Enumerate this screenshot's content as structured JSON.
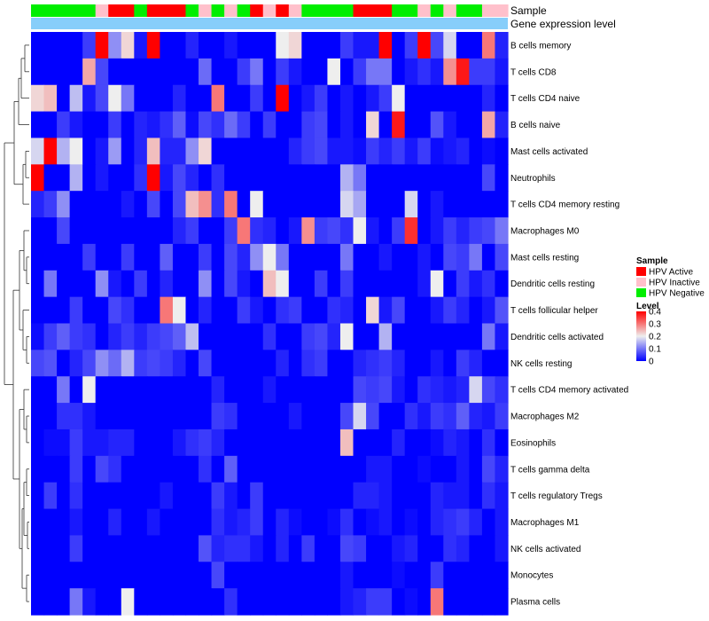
{
  "chart_data": {
    "type": "heatmap",
    "colors": {
      "low": "#0000ff",
      "mid": "#eeeeee",
      "high": "#ff0000",
      "hpv_active": "#ff0000",
      "hpv_inactive": "#ffc0cb",
      "hpv_negative": "#00ee00",
      "gene_expression_bar": "#87cefa"
    },
    "annotation_labels": {
      "sample": "Sample",
      "gene_expression": "Gene expression level"
    },
    "sample_annotation": [
      "HPV Negative",
      "HPV Negative",
      "HPV Negative",
      "HPV Negative",
      "HPV Negative",
      "HPV Inactive",
      "HPV Active",
      "HPV Active",
      "HPV Negative",
      "HPV Active",
      "HPV Active",
      "HPV Active",
      "HPV Negative",
      "HPV Inactive",
      "HPV Negative",
      "HPV Inactive",
      "HPV Negative",
      "HPV Active",
      "HPV Inactive",
      "HPV Active",
      "HPV Inactive",
      "HPV Negative",
      "HPV Negative",
      "HPV Negative",
      "HPV Negative",
      "HPV Active",
      "HPV Active",
      "HPV Active",
      "HPV Negative",
      "HPV Negative",
      "HPV Inactive",
      "HPV Negative",
      "HPV Inactive",
      "HPV Negative",
      "HPV Negative",
      "HPV Inactive",
      "HPV Inactive"
    ],
    "rows": [
      "B cells memory",
      "T cells CD8",
      "T cells CD4 naive",
      "B cells naive",
      "Mast cells activated",
      "Neutrophils",
      "T cells CD4 memory resting",
      "Macrophages M0",
      "Mast cells resting",
      "Dendritic cells resting",
      "T cells follicular helper",
      "Dendritic cells activated",
      "NK cells resting",
      "T cells CD4 memory activated",
      "Macrophages M2",
      "Eosinophils",
      "T cells gamma delta",
      "T cells regulatory  Tregs",
      "Macrophages M1",
      "NK cells activated",
      "Monocytes",
      "Plasma cells"
    ],
    "values": [
      [
        0,
        0,
        0,
        0,
        0.05,
        0.4,
        0.12,
        0.22,
        0.02,
        0.4,
        0,
        0,
        0.03,
        0,
        0,
        0.02,
        0,
        0,
        0,
        0.2,
        0.22,
        0,
        0,
        0,
        0.05,
        0.02,
        0.02,
        0.4,
        0,
        0.05,
        0.4,
        0.06,
        0.18,
        0,
        0,
        0.3,
        0.03
      ],
      [
        0,
        0,
        0,
        0,
        0.26,
        0.06,
        0,
        0,
        0,
        0,
        0,
        0,
        0,
        0.09,
        0,
        0,
        0.05,
        0.1,
        0,
        0.05,
        0.02,
        0,
        0,
        0.2,
        0,
        0.05,
        0.1,
        0.1,
        0,
        0.02,
        0.04,
        0.02,
        0.28,
        0.38,
        0.05,
        0.05,
        0.02
      ],
      [
        0.22,
        0.24,
        0,
        0.16,
        0.02,
        0.06,
        0.2,
        0.1,
        0,
        0,
        0,
        0.03,
        0,
        0,
        0.3,
        0,
        0,
        0.05,
        0,
        0.4,
        0,
        0.02,
        0.05,
        0,
        0.02,
        0,
        0.02,
        0.05,
        0.2,
        0,
        0,
        0,
        0,
        0,
        0,
        0.03,
        0
      ],
      [
        0,
        0,
        0.05,
        0.02,
        0,
        0,
        0.05,
        0,
        0.03,
        0.02,
        0.04,
        0.08,
        0.01,
        0.06,
        0.04,
        0.09,
        0.05,
        0,
        0.05,
        0,
        0,
        0.05,
        0.06,
        0,
        0.02,
        0,
        0.22,
        0,
        0.38,
        0,
        0,
        0.07,
        0.02,
        0,
        0,
        0.26,
        0.03
      ],
      [
        0.18,
        0.4,
        0.15,
        0.2,
        0,
        0.02,
        0.13,
        0,
        0.03,
        0.24,
        0.03,
        0.03,
        0.12,
        0.22,
        0,
        0,
        0,
        0,
        0,
        0,
        0.03,
        0.05,
        0.06,
        0.02,
        0.02,
        0.01,
        0.05,
        0.03,
        0.05,
        0.02,
        0.05,
        0.01,
        0.02,
        0.03,
        0,
        0.01,
        0
      ],
      [
        0.4,
        0,
        0,
        0.15,
        0,
        0.02,
        0,
        0,
        0.04,
        0.4,
        0.02,
        0.06,
        0.03,
        0,
        0.04,
        0,
        0,
        0,
        0,
        0,
        0,
        0,
        0,
        0,
        0.15,
        0.1,
        0,
        0,
        0,
        0,
        0,
        0,
        0,
        0,
        0,
        0.06,
        0
      ],
      [
        0.03,
        0.05,
        0.12,
        0,
        0,
        0,
        0,
        0.02,
        0,
        0.06,
        0,
        0.06,
        0.24,
        0.28,
        0.04,
        0.3,
        0,
        0.2,
        0,
        0,
        0,
        0,
        0,
        0,
        0.18,
        0.14,
        0,
        0,
        0,
        0.18,
        0,
        0.02,
        0,
        0,
        0,
        0,
        0
      ],
      [
        0,
        0,
        0.06,
        0,
        0,
        0,
        0,
        0,
        0,
        0,
        0,
        0.03,
        0.05,
        0,
        0,
        0.05,
        0.3,
        0.04,
        0.03,
        0,
        0.02,
        0.28,
        0.05,
        0.06,
        0.04,
        0.2,
        0.02,
        0,
        0.05,
        0.36,
        0,
        0.02,
        0.05,
        0.03,
        0.05,
        0.06,
        0.1
      ],
      [
        0,
        0,
        0,
        0,
        0.05,
        0,
        0,
        0.05,
        0,
        0,
        0.08,
        0,
        0,
        0.05,
        0,
        0.06,
        0.03,
        0.12,
        0.2,
        0.1,
        0,
        0,
        0,
        0,
        0.1,
        0,
        0,
        0.02,
        0,
        0,
        0.02,
        0,
        0.06,
        0.05,
        0.1,
        0,
        0.06
      ],
      [
        0,
        0.1,
        0,
        0,
        0,
        0.12,
        0.02,
        0,
        0.05,
        0,
        0.03,
        0,
        0,
        0.12,
        0,
        0.06,
        0.02,
        0,
        0.24,
        0.2,
        0,
        0,
        0.05,
        0,
        0.05,
        0,
        0,
        0,
        0,
        0,
        0.02,
        0.2,
        0,
        0.05,
        0.02,
        0.04,
        0
      ],
      [
        0,
        0,
        0,
        0.05,
        0,
        0,
        0.06,
        0.04,
        0,
        0,
        0.3,
        0.2,
        0,
        0.03,
        0,
        0,
        0.05,
        0.02,
        0,
        0.04,
        0.05,
        0,
        0,
        0.04,
        0.03,
        0,
        0.22,
        0.02,
        0.06,
        0,
        0,
        0.02,
        0.05,
        0.03,
        0,
        0.02,
        0.07
      ],
      [
        0.01,
        0.05,
        0.08,
        0.05,
        0.04,
        0,
        0.03,
        0.05,
        0.03,
        0.05,
        0.06,
        0.08,
        0.16,
        0,
        0,
        0,
        0,
        0,
        0.04,
        0,
        0,
        0.05,
        0.06,
        0.03,
        0.2,
        0,
        0,
        0.15,
        0,
        0,
        0,
        0,
        0,
        0,
        0,
        0.1,
        0.02
      ],
      [
        0.06,
        0.07,
        0,
        0.03,
        0.06,
        0.12,
        0.09,
        0.15,
        0.05,
        0.06,
        0.05,
        0.03,
        0,
        0.06,
        0,
        0,
        0,
        0,
        0,
        0.03,
        0,
        0.04,
        0.05,
        0,
        0,
        0.03,
        0.04,
        0.05,
        0.03,
        0,
        0,
        0.02,
        0,
        0.05,
        0.03,
        0,
        0
      ],
      [
        0,
        0,
        0.1,
        0,
        0.2,
        0,
        0,
        0,
        0,
        0,
        0,
        0,
        0,
        0,
        0.03,
        0,
        0,
        0,
        0.02,
        0,
        0,
        0,
        0,
        0,
        0,
        0.06,
        0.05,
        0.06,
        0.02,
        0,
        0.04,
        0.03,
        0.02,
        0.03,
        0.18,
        0.06,
        0.04
      ],
      [
        0,
        0,
        0.04,
        0.04,
        0.02,
        0,
        0,
        0,
        0,
        0,
        0,
        0,
        0,
        0,
        0.05,
        0.04,
        0,
        0,
        0,
        0,
        0.02,
        0,
        0,
        0,
        0.06,
        0.18,
        0.06,
        0,
        0,
        0.04,
        0.02,
        0.05,
        0.04,
        0.08,
        0.03,
        0.02,
        0.05
      ],
      [
        0,
        0.01,
        0.01,
        0.05,
        0.02,
        0.02,
        0.03,
        0.03,
        0,
        0,
        0,
        0.02,
        0.04,
        0.05,
        0.03,
        0,
        0,
        0,
        0,
        0,
        0,
        0,
        0,
        0,
        0.24,
        0,
        0,
        0,
        0.03,
        0,
        0,
        0.01,
        0.03,
        0.02,
        0,
        0.04,
        0
      ],
      [
        0,
        0,
        0,
        0.05,
        0,
        0.06,
        0.04,
        0,
        0,
        0,
        0,
        0,
        0,
        0.04,
        0,
        0.08,
        0,
        0,
        0,
        0,
        0,
        0,
        0,
        0,
        0,
        0,
        0.02,
        0.02,
        0,
        0,
        0.01,
        0,
        0,
        0.02,
        0,
        0.06,
        0.03
      ],
      [
        0,
        0.05,
        0,
        0.04,
        0,
        0,
        0,
        0,
        0,
        0,
        0.02,
        0,
        0,
        0,
        0.05,
        0.02,
        0,
        0.05,
        0,
        0,
        0,
        0,
        0,
        0,
        0,
        0.03,
        0.03,
        0.02,
        0,
        0,
        0,
        0.03,
        0.02,
        0.02,
        0,
        0.04,
        0.02
      ],
      [
        0,
        0,
        0,
        0.02,
        0,
        0,
        0.03,
        0,
        0,
        0.02,
        0,
        0,
        0,
        0,
        0.04,
        0.02,
        0.03,
        0.05,
        0,
        0.03,
        0.01,
        0,
        0,
        0.01,
        0.04,
        0,
        0.01,
        0.02,
        0,
        0.01,
        0,
        0.03,
        0.04,
        0.05,
        0.03,
        0,
        0.02
      ],
      [
        0,
        0,
        0,
        0.05,
        0,
        0,
        0,
        0,
        0,
        0,
        0,
        0,
        0,
        0.07,
        0.03,
        0.04,
        0.04,
        0.02,
        0,
        0.03,
        0,
        0.05,
        0,
        0,
        0.06,
        0.05,
        0,
        0,
        0.02,
        0.03,
        0,
        0,
        0.04,
        0.03,
        0,
        0,
        0.02
      ],
      [
        0,
        0,
        0,
        0,
        0,
        0,
        0,
        0,
        0,
        0,
        0,
        0,
        0,
        0,
        0.06,
        0,
        0,
        0,
        0,
        0,
        0,
        0,
        0,
        0,
        0.02,
        0,
        0,
        0,
        0.01,
        0,
        0,
        0.05,
        0,
        0,
        0,
        0,
        0
      ],
      [
        0,
        0,
        0,
        0.1,
        0.02,
        0,
        0,
        0.2,
        0,
        0,
        0,
        0,
        0,
        0,
        0,
        0.04,
        0,
        0,
        0,
        0,
        0,
        0,
        0,
        0,
        0.02,
        0.03,
        0.05,
        0.05,
        0,
        0.01,
        0,
        0.3,
        0,
        0,
        0,
        0,
        0
      ]
    ],
    "legend": {
      "sample_title": "Sample",
      "sample_entries": [
        {
          "label": "HPV Active",
          "key": "hpv_active"
        },
        {
          "label": "HPV Inactive",
          "key": "hpv_inactive"
        },
        {
          "label": "HPV Negative",
          "key": "hpv_negative"
        }
      ],
      "level_title": "Level",
      "level_ticks": [
        "0.4",
        "0.3",
        "0.2",
        "0.1",
        "0"
      ],
      "level_range": [
        0,
        0.4
      ]
    }
  }
}
